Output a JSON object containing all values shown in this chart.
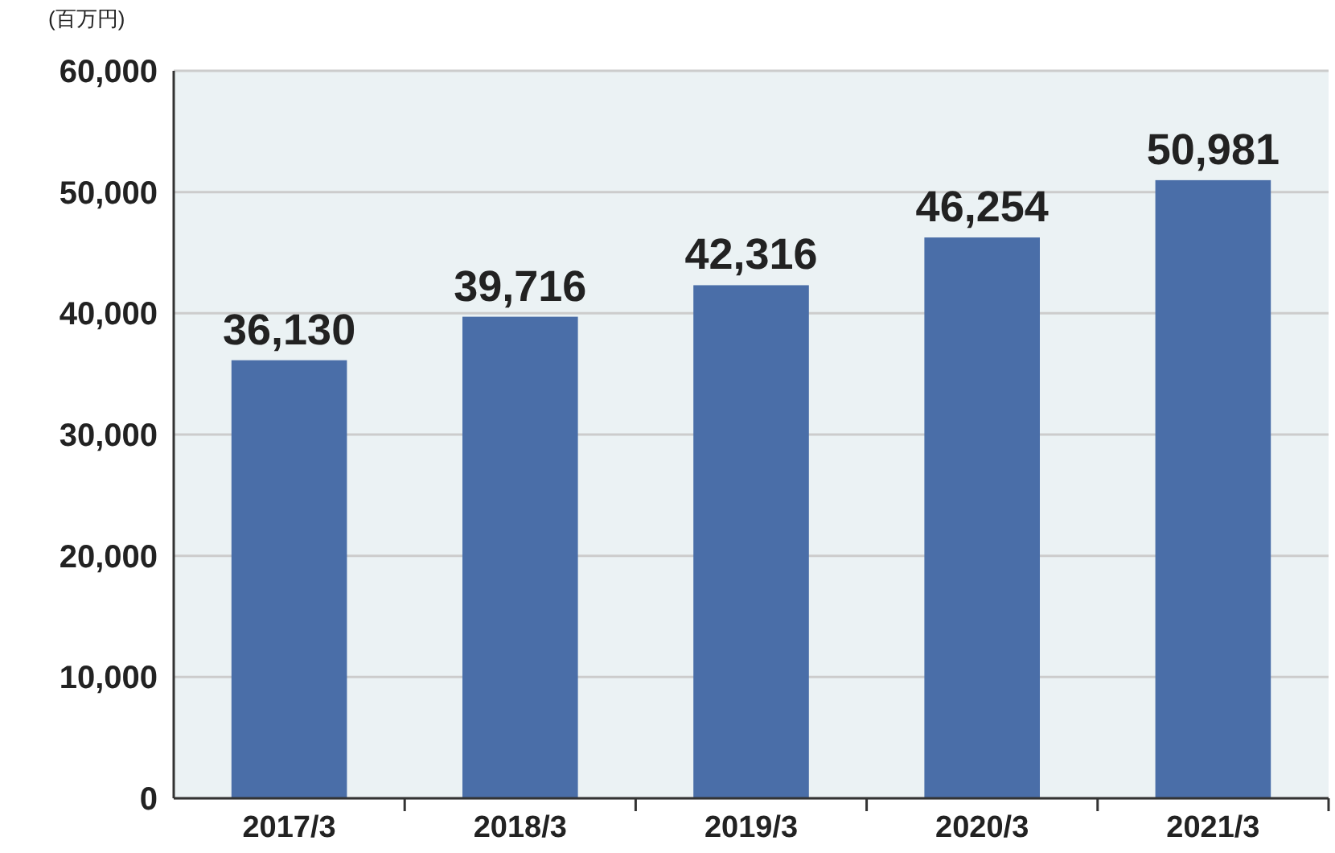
{
  "chart_data": {
    "type": "bar",
    "ylabel": "(百万円)",
    "categories": [
      "2017/3",
      "2018/3",
      "2019/3",
      "2020/3",
      "2021/3"
    ],
    "values": [
      36130,
      39716,
      42316,
      46254,
      50981
    ],
    "color": "#4a6ea8",
    "ylim": [
      0,
      60000
    ],
    "yticks": [
      {
        "value": 0,
        "label": "0"
      },
      {
        "value": 10000,
        "label": "10,000"
      },
      {
        "value": 20000,
        "label": "20,000"
      },
      {
        "value": 30000,
        "label": "30,000"
      },
      {
        "value": 40000,
        "label": "40,000"
      },
      {
        "value": 50000,
        "label": "50,000"
      },
      {
        "value": 60000,
        "label": "60,000"
      }
    ],
    "value_labels": [
      "36,130",
      "39,716",
      "42,316",
      "46,254",
      "50,981"
    ],
    "grid": "y"
  }
}
